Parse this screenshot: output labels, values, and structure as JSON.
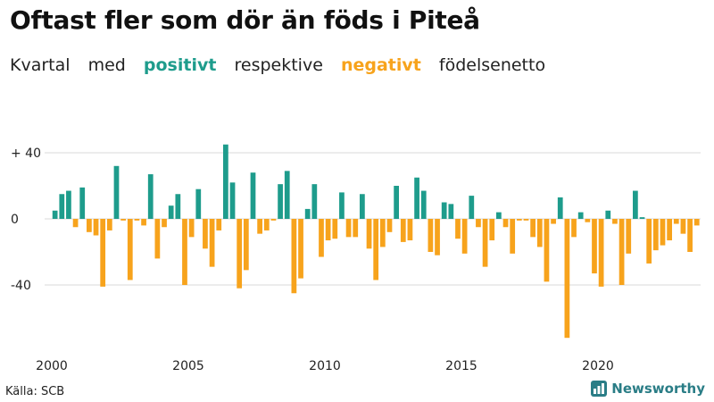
{
  "chart_data": {
    "type": "bar",
    "title": "Oftast fler som dör än föds i Piteå",
    "subtitle_parts": [
      "Kvartal",
      "med",
      "positivt",
      "respektive",
      "negativt",
      "födelsenetto"
    ],
    "xlabel": "",
    "ylabel": "",
    "ylim": [
      -70,
      50
    ],
    "y_ticks": [
      40,
      0,
      -40
    ],
    "y_tick_labels": [
      "+ 40",
      "0",
      "-40"
    ],
    "x_range": [
      2000,
      2023.75
    ],
    "x_ticks": [
      2000,
      2005,
      2010,
      2015,
      2020
    ],
    "x_tick_labels": [
      "2000",
      "2005",
      "2010",
      "2015",
      "2020"
    ],
    "grid": true,
    "start_year": 2000,
    "quarters_per_year": 4,
    "values": [
      5,
      15,
      17,
      -5,
      19,
      -8,
      -10,
      -41,
      -7,
      32,
      -1,
      -37,
      -1,
      -4,
      27,
      -24,
      -5,
      8,
      15,
      -40,
      -11,
      18,
      -18,
      -29,
      -7,
      45,
      22,
      -42,
      -31,
      28,
      -9,
      -7,
      -1,
      21,
      29,
      -45,
      -36,
      6,
      21,
      -23,
      -13,
      -12,
      16,
      -11,
      -11,
      15,
      -18,
      -37,
      -17,
      -8,
      20,
      -14,
      -13,
      25,
      17,
      -20,
      -22,
      10,
      9,
      -12,
      -21,
      14,
      -5,
      -29,
      -13,
      4,
      -5,
      -21,
      -1,
      -1,
      -11,
      -17,
      -38,
      -3,
      13,
      -72,
      -11,
      4,
      -2,
      -33,
      -41,
      5,
      -3,
      -40,
      -21,
      17,
      1,
      -27,
      -19,
      -16,
      -13,
      -3,
      -9,
      -20,
      -4
    ],
    "colors": {
      "positive": "#1e9c8c",
      "negative": "#f7a31c"
    }
  },
  "source": "Källa: SCB",
  "brand": "Newsworthy"
}
